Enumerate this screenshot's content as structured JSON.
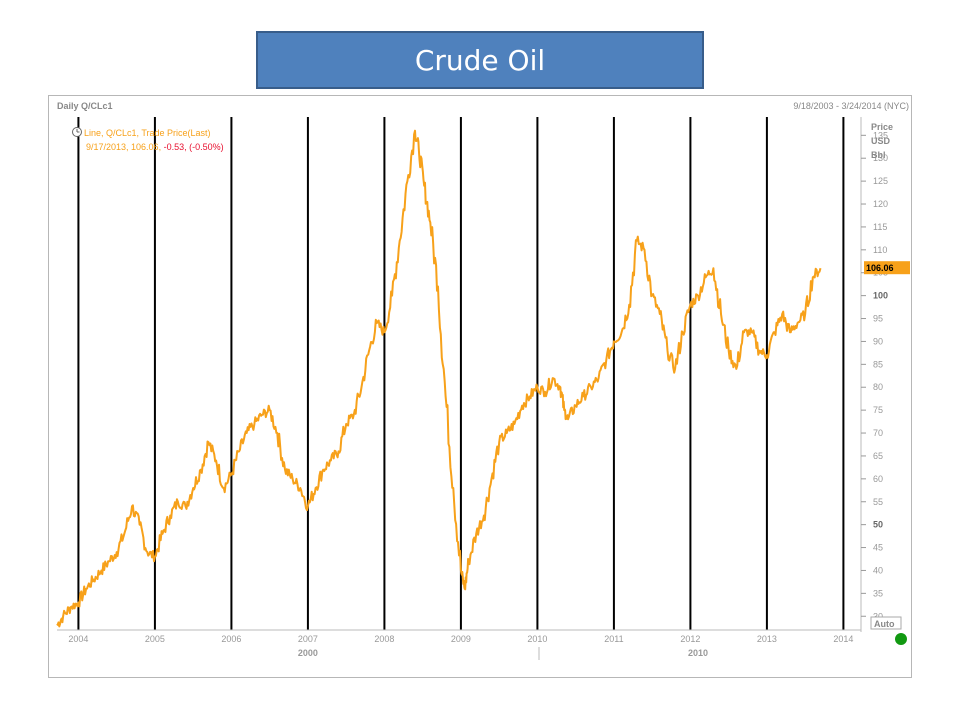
{
  "title": "Crude Oil",
  "header": {
    "left": "Daily Q/CLc1",
    "right": "9/18/2003 - 3/24/2014 (NYC)"
  },
  "legend": {
    "line1": "Line, Q/CLc1, Trade Price(Last)",
    "line2_prefix": "9/17/2013, 106.06, ",
    "line2_change": "-0.53, (-0.50%)"
  },
  "axis": {
    "unit_lines": [
      "Price",
      "USD",
      "Bbl"
    ],
    "auto_label": "Auto",
    "last_price_label": "106.06",
    "decade_labels": [
      {
        "label": "2000",
        "x": 2007.0
      },
      {
        "label": "2010",
        "x": 2012.1
      }
    ]
  },
  "colors": {
    "line": "#f7a11a",
    "title_bg": "#4f81bd",
    "negative": "#e8102f",
    "status": "#119911"
  },
  "chart_data": {
    "type": "line",
    "title": "Crude Oil",
    "xlabel": "",
    "ylabel": "Price USD Bbl",
    "xlim": [
      2003.72,
      2014.23
    ],
    "ylim": [
      27,
      139
    ],
    "x_ticks": [
      2004,
      2005,
      2006,
      2007,
      2008,
      2009,
      2010,
      2011,
      2012,
      2013,
      2014
    ],
    "y_ticks": [
      30,
      35,
      40,
      45,
      50,
      55,
      60,
      65,
      70,
      75,
      80,
      85,
      90,
      95,
      100,
      105,
      110,
      115,
      120,
      125,
      130,
      135
    ],
    "grid": "vertical lines at year boundaries",
    "series": [
      {
        "name": "Q/CLc1 Trade Price(Last)",
        "x": [
          2003.72,
          2003.8,
          2003.9,
          2004.0,
          2004.1,
          2004.2,
          2004.3,
          2004.4,
          2004.5,
          2004.6,
          2004.7,
          2004.8,
          2004.9,
          2005.0,
          2005.1,
          2005.2,
          2005.3,
          2005.4,
          2005.5,
          2005.6,
          2005.7,
          2005.8,
          2005.9,
          2006.0,
          2006.1,
          2006.2,
          2006.3,
          2006.4,
          2006.5,
          2006.6,
          2006.7,
          2006.8,
          2006.9,
          2007.0,
          2007.1,
          2007.2,
          2007.3,
          2007.4,
          2007.5,
          2007.6,
          2007.7,
          2007.8,
          2007.9,
          2008.0,
          2008.1,
          2008.2,
          2008.3,
          2008.4,
          2008.45,
          2008.52,
          2008.6,
          2008.7,
          2008.8,
          2008.9,
          2009.0,
          2009.05,
          2009.1,
          2009.2,
          2009.3,
          2009.4,
          2009.5,
          2009.6,
          2009.7,
          2009.8,
          2009.9,
          2010.0,
          2010.1,
          2010.2,
          2010.3,
          2010.35,
          2010.4,
          2010.5,
          2010.6,
          2010.7,
          2010.8,
          2010.9,
          2011.0,
          2011.1,
          2011.2,
          2011.3,
          2011.4,
          2011.5,
          2011.6,
          2011.7,
          2011.8,
          2011.9,
          2012.0,
          2012.1,
          2012.2,
          2012.3,
          2012.4,
          2012.5,
          2012.6,
          2012.7,
          2012.8,
          2012.9,
          2013.0,
          2013.1,
          2013.2,
          2013.3,
          2013.4,
          2013.5,
          2013.6,
          2013.7
        ],
        "values": [
          28,
          30,
          32,
          33,
          36,
          38,
          40,
          42,
          44,
          48,
          54,
          50,
          44,
          43,
          48,
          52,
          55,
          54,
          58,
          62,
          68,
          64,
          58,
          61,
          66,
          70,
          72,
          74,
          75,
          70,
          62,
          60,
          58,
          54,
          58,
          62,
          64,
          66,
          72,
          74,
          80,
          88,
          94,
          92,
          100,
          112,
          125,
          136,
          132,
          124,
          116,
          102,
          78,
          58,
          40,
          36,
          42,
          48,
          52,
          60,
          68,
          70,
          72,
          76,
          78,
          80,
          79,
          82,
          80,
          75,
          73,
          76,
          78,
          80,
          82,
          86,
          90,
          92,
          98,
          112,
          110,
          100,
          96,
          88,
          84,
          92,
          98,
          100,
          104,
          106,
          96,
          88,
          84,
          92,
          92,
          88,
          87,
          92,
          96,
          92,
          94,
          96,
          104,
          106
        ]
      }
    ]
  }
}
